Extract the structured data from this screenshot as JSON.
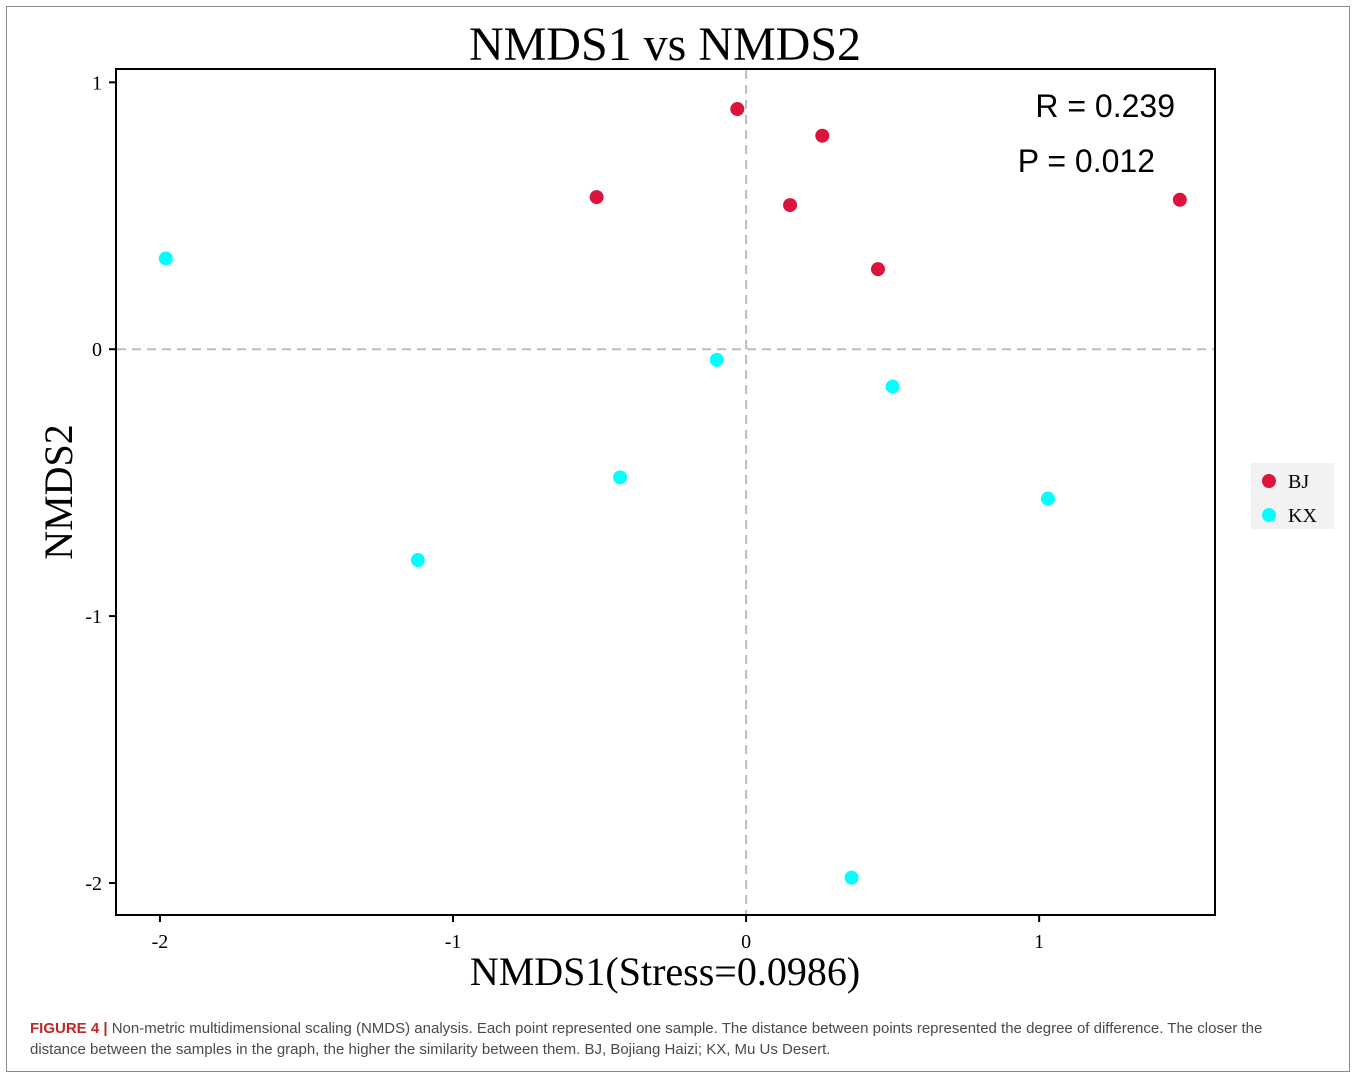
{
  "chart_data": {
    "type": "scatter",
    "title": "NMDS1 vs NMDS2",
    "xlabel": "NMDS1(Stress=0.0986)",
    "ylabel": "NMDS2",
    "xlim": [
      -2.15,
      1.6
    ],
    "ylim": [
      -2.12,
      1.05
    ],
    "xticks": [
      -2,
      -1,
      0,
      1
    ],
    "yticks": [
      1,
      0,
      -1,
      -2
    ],
    "grid": false,
    "reference_lines": {
      "x": 0,
      "y": 0,
      "style": "dashed"
    },
    "annotations": [
      "R = 0.239",
      "P = 0.012"
    ],
    "legend": {
      "placement": "right",
      "entries": [
        "BJ",
        "KX"
      ]
    },
    "series": [
      {
        "name": "BJ",
        "color": "#dc143c",
        "points": [
          {
            "x": -0.03,
            "y": 0.9
          },
          {
            "x": 0.26,
            "y": 0.8
          },
          {
            "x": -0.51,
            "y": 0.57
          },
          {
            "x": 0.15,
            "y": 0.54
          },
          {
            "x": 1.48,
            "y": 0.56
          },
          {
            "x": 0.45,
            "y": 0.3
          }
        ]
      },
      {
        "name": "KX",
        "color": "#00ffff",
        "points": [
          {
            "x": -1.98,
            "y": 0.34
          },
          {
            "x": -0.1,
            "y": -0.04
          },
          {
            "x": 0.5,
            "y": -0.14
          },
          {
            "x": -0.43,
            "y": -0.48
          },
          {
            "x": 1.03,
            "y": -0.56
          },
          {
            "x": -1.12,
            "y": -0.79
          },
          {
            "x": 0.36,
            "y": -1.98
          }
        ]
      }
    ]
  },
  "caption": {
    "label": "FIGURE 4 |",
    "text": " Non-metric multidimensional scaling (NMDS) analysis. Each point represented one sample. The distance between points represented the degree of difference. The closer the distance between the samples in the graph, the higher the similarity between them. BJ, Bojiang Haizi; KX, Mu Us Desert."
  }
}
